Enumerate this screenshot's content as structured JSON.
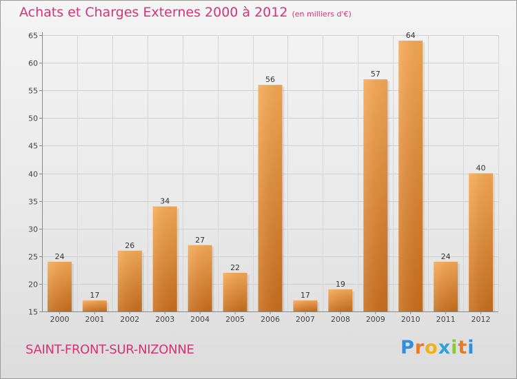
{
  "chart_data": {
    "type": "bar",
    "title": "Achats et Charges Externes 2000 à 2012",
    "subtitle": "(en milliers d'€)",
    "categories": [
      "2000",
      "2001",
      "2002",
      "2003",
      "2004",
      "2005",
      "2006",
      "2007",
      "2008",
      "2009",
      "2010",
      "2011",
      "2012"
    ],
    "values": [
      24,
      17,
      26,
      34,
      27,
      22,
      56,
      17,
      19,
      57,
      64,
      24,
      40
    ],
    "value_labels": [
      "24",
      "17",
      "26",
      "34",
      "27",
      "22",
      "56",
      "17",
      "19",
      "57",
      "64",
      "24",
      "40"
    ],
    "ylim": [
      15,
      65
    ],
    "yticks": [
      15,
      20,
      25,
      30,
      35,
      40,
      45,
      50,
      55,
      60,
      65
    ],
    "ytick_labels": [
      "15",
      "20",
      "25",
      "30",
      "35",
      "40",
      "45",
      "50",
      "55",
      "60",
      "65"
    ],
    "xlabel": "",
    "ylabel": "",
    "grid": true,
    "bar_color": "#f0963a"
  },
  "commune": "SAINT-FRONT-SUR-NIZONNE",
  "logo": {
    "text": "Proxiti",
    "letters": [
      "P",
      "r",
      "o",
      "x",
      "i",
      "t",
      "i"
    ],
    "colors": [
      "#2f8fd8",
      "#e8792a",
      "#f0b21a",
      "#2fa3d8",
      "#8cc63e",
      "#e8792a",
      "#2f8fd8"
    ]
  }
}
